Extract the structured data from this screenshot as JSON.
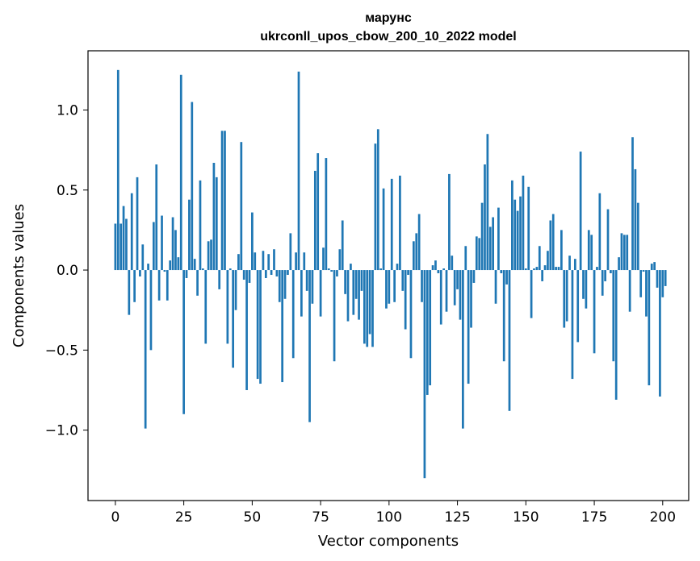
{
  "chart_data": {
    "type": "bar",
    "title": "марунс",
    "subtitle": "ukrconll_upos_cbow_200_10_2022 model",
    "xlabel": "Vector components",
    "ylabel": "Components values",
    "xlim": [
      -10,
      209.5
    ],
    "ylim": [
      -1.44,
      1.37
    ],
    "xticks": [
      0,
      25,
      50,
      75,
      100,
      125,
      150,
      175,
      200
    ],
    "yticks": [
      -1.0,
      -0.5,
      0.0,
      0.5,
      1.0
    ],
    "ytick_labels": [
      "−1.0",
      "−0.5",
      "0.0",
      "0.5",
      "1.0"
    ],
    "grid": false,
    "color": "#1f77b4",
    "values": [
      0.29,
      1.25,
      0.29,
      0.4,
      0.32,
      -0.28,
      0.48,
      -0.2,
      0.58,
      -0.04,
      0.16,
      -0.99,
      0.04,
      -0.5,
      0.3,
      0.66,
      -0.19,
      0.34,
      -0.01,
      -0.19,
      0.06,
      0.33,
      0.25,
      0.08,
      1.22,
      -0.9,
      -0.05,
      0.44,
      1.05,
      0.07,
      -0.16,
      0.56,
      0.01,
      -0.46,
      0.18,
      0.19,
      0.67,
      0.58,
      -0.12,
      0.87,
      0.87,
      -0.46,
      0.01,
      -0.61,
      -0.25,
      0.1,
      0.8,
      -0.06,
      -0.75,
      -0.08,
      0.36,
      0.11,
      -0.68,
      -0.71,
      0.12,
      -0.05,
      0.1,
      -0.03,
      0.13,
      -0.04,
      -0.2,
      -0.7,
      -0.18,
      -0.03,
      0.23,
      -0.55,
      0.11,
      1.24,
      -0.29,
      0.11,
      -0.13,
      -0.95,
      -0.21,
      0.62,
      0.73,
      -0.29,
      0.14,
      0.7,
      0.01,
      -0.01,
      -0.57,
      -0.04,
      0.13,
      0.31,
      -0.15,
      -0.32,
      0.04,
      -0.28,
      -0.18,
      -0.31,
      -0.13,
      -0.46,
      -0.48,
      -0.4,
      -0.48,
      0.79,
      0.88,
      0.01,
      0.51,
      -0.24,
      -0.21,
      0.57,
      -0.2,
      0.04,
      0.59,
      -0.13,
      -0.37,
      -0.03,
      -0.55,
      0.18,
      0.23,
      0.35,
      -0.2,
      -1.3,
      -0.78,
      -0.72,
      0.03,
      0.06,
      -0.02,
      -0.34,
      0.01,
      -0.26,
      0.6,
      0.09,
      -0.22,
      -0.12,
      -0.31,
      -0.99,
      0.15,
      -0.71,
      -0.36,
      -0.08,
      0.21,
      0.2,
      0.42,
      0.66,
      0.85,
      0.27,
      0.33,
      -0.21,
      0.39,
      -0.02,
      -0.57,
      -0.09,
      -0.88,
      0.56,
      0.44,
      0.37,
      0.46,
      0.59,
      0.01,
      0.52,
      -0.3,
      0.01,
      0.02,
      0.15,
      -0.07,
      0.03,
      0.12,
      0.31,
      0.35,
      0.02,
      0.02,
      0.25,
      -0.36,
      -0.32,
      0.09,
      -0.68,
      0.07,
      -0.45,
      0.74,
      -0.18,
      -0.24,
      0.25,
      0.22,
      -0.52,
      0.02,
      0.48,
      -0.16,
      -0.07,
      0.38,
      -0.02,
      -0.57,
      -0.81,
      0.08,
      0.23,
      0.22,
      0.22,
      -0.26,
      0.83,
      0.63,
      0.42,
      -0.17,
      -0.01,
      -0.29,
      -0.72,
      0.04,
      0.05,
      -0.11,
      -0.79,
      -0.17,
      -0.1
    ]
  }
}
